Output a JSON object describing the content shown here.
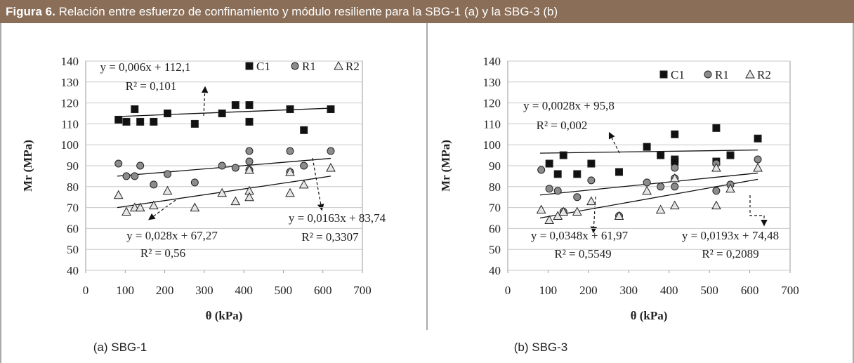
{
  "figure_label": "Figura 6.",
  "figure_title": "Relación entre esfuerzo de confinamiento y módulo resiliente para la SBG-1 (a) y la SBG-3 (b)",
  "chart_data": [
    {
      "type": "scatter",
      "caption": "(a) SBG-1",
      "x_label": "θ (kPa)",
      "y_label": "Mr (MPa)",
      "xlim": [
        0,
        700
      ],
      "xticks": [
        0,
        100,
        200,
        300,
        400,
        500,
        600,
        700
      ],
      "ylim": [
        40,
        140
      ],
      "yticks": [
        40,
        50,
        60,
        70,
        80,
        90,
        100,
        110,
        120,
        130,
        140
      ],
      "grid": true,
      "series": [
        {
          "name": "C1",
          "marker": "square",
          "color": "#111111",
          "x": [
            83,
            103,
            124,
            138,
            172,
            207,
            276,
            345,
            379,
            414,
            414,
            517,
            552,
            620
          ],
          "values": [
            112,
            111,
            117,
            111,
            111,
            115,
            110,
            115,
            119,
            119,
            111,
            117,
            107,
            117
          ]
        },
        {
          "name": "R1",
          "marker": "circle",
          "color": "#8c8c8c",
          "x": [
            83,
            103,
            124,
            138,
            172,
            207,
            276,
            345,
            379,
            414,
            414,
            414,
            517,
            517,
            552,
            620
          ],
          "values": [
            91,
            85,
            85,
            90,
            81,
            86,
            82,
            90,
            89,
            97,
            92,
            88,
            97,
            87,
            90,
            97
          ]
        },
        {
          "name": "R2",
          "marker": "triangle",
          "color": "#e6e6e6",
          "x": [
            83,
            103,
            124,
            138,
            172,
            207,
            276,
            345,
            379,
            414,
            414,
            414,
            517,
            517,
            552,
            620
          ],
          "values": [
            76,
            68,
            70,
            70,
            71,
            78,
            70,
            77,
            73,
            78,
            75,
            88,
            77,
            87,
            81,
            89
          ]
        }
      ],
      "trendlines": [
        {
          "x": [
            80,
            620
          ],
          "values": [
            113.5,
            117.5
          ]
        },
        {
          "x": [
            80,
            620
          ],
          "values": [
            85,
            93.5
          ]
        },
        {
          "x": [
            80,
            620
          ],
          "values": [
            70,
            85
          ]
        }
      ],
      "annotations": [
        "y = 0,006x + 112,1",
        "R² = 0,101",
        "y = 0,028x + 67,27",
        "R² = 0,56",
        "y = 0,0163x + 83,74",
        "R² = 0,3307"
      ]
    },
    {
      "type": "scatter",
      "caption": "(b) SBG-3",
      "x_label": "θ (kPa)",
      "y_label": "Mr (MPa)",
      "xlim": [
        0,
        700
      ],
      "xticks": [
        0,
        100,
        200,
        300,
        400,
        500,
        600,
        700
      ],
      "ylim": [
        40,
        140
      ],
      "yticks": [
        40,
        50,
        60,
        70,
        80,
        90,
        100,
        110,
        120,
        130,
        140
      ],
      "grid": true,
      "series": [
        {
          "name": "C1",
          "marker": "square",
          "color": "#111111",
          "x": [
            103,
            124,
            138,
            172,
            207,
            276,
            345,
            379,
            414,
            414,
            414,
            517,
            517,
            552,
            620
          ],
          "values": [
            91,
            86,
            95,
            86,
            91,
            87,
            99,
            95,
            105,
            93,
            92,
            108,
            92,
            95,
            103
          ]
        },
        {
          "name": "R1",
          "marker": "circle",
          "color": "#8c8c8c",
          "x": [
            83,
            103,
            124,
            138,
            172,
            207,
            276,
            345,
            379,
            414,
            414,
            414,
            517,
            517,
            552,
            620
          ],
          "values": [
            88,
            79,
            78,
            68,
            75,
            83,
            66,
            82,
            80,
            89,
            84,
            80,
            91,
            78,
            81,
            93
          ]
        },
        {
          "name": "R2",
          "marker": "triangle",
          "color": "#e6e6e6",
          "x": [
            83,
            103,
            124,
            138,
            172,
            207,
            276,
            345,
            379,
            414,
            414,
            517,
            517,
            552,
            620
          ],
          "values": [
            69,
            64,
            66,
            68,
            68,
            73,
            66,
            78,
            69,
            84,
            71,
            89,
            71,
            79,
            89
          ]
        }
      ],
      "trendlines": [
        {
          "x": [
            80,
            620
          ],
          "values": [
            96,
            97.5
          ]
        },
        {
          "x": [
            80,
            620
          ],
          "values": [
            76,
            86.5
          ]
        },
        {
          "x": [
            80,
            620
          ],
          "values": [
            65,
            83.5
          ]
        }
      ],
      "annotations": [
        "y = 0,0028x + 95,8",
        "R² = 0,002",
        "y = 0,0348x + 61,97",
        "R² = 0,5549",
        "y = 0,0193x + 74,48",
        "R² = 0,2089"
      ]
    }
  ]
}
